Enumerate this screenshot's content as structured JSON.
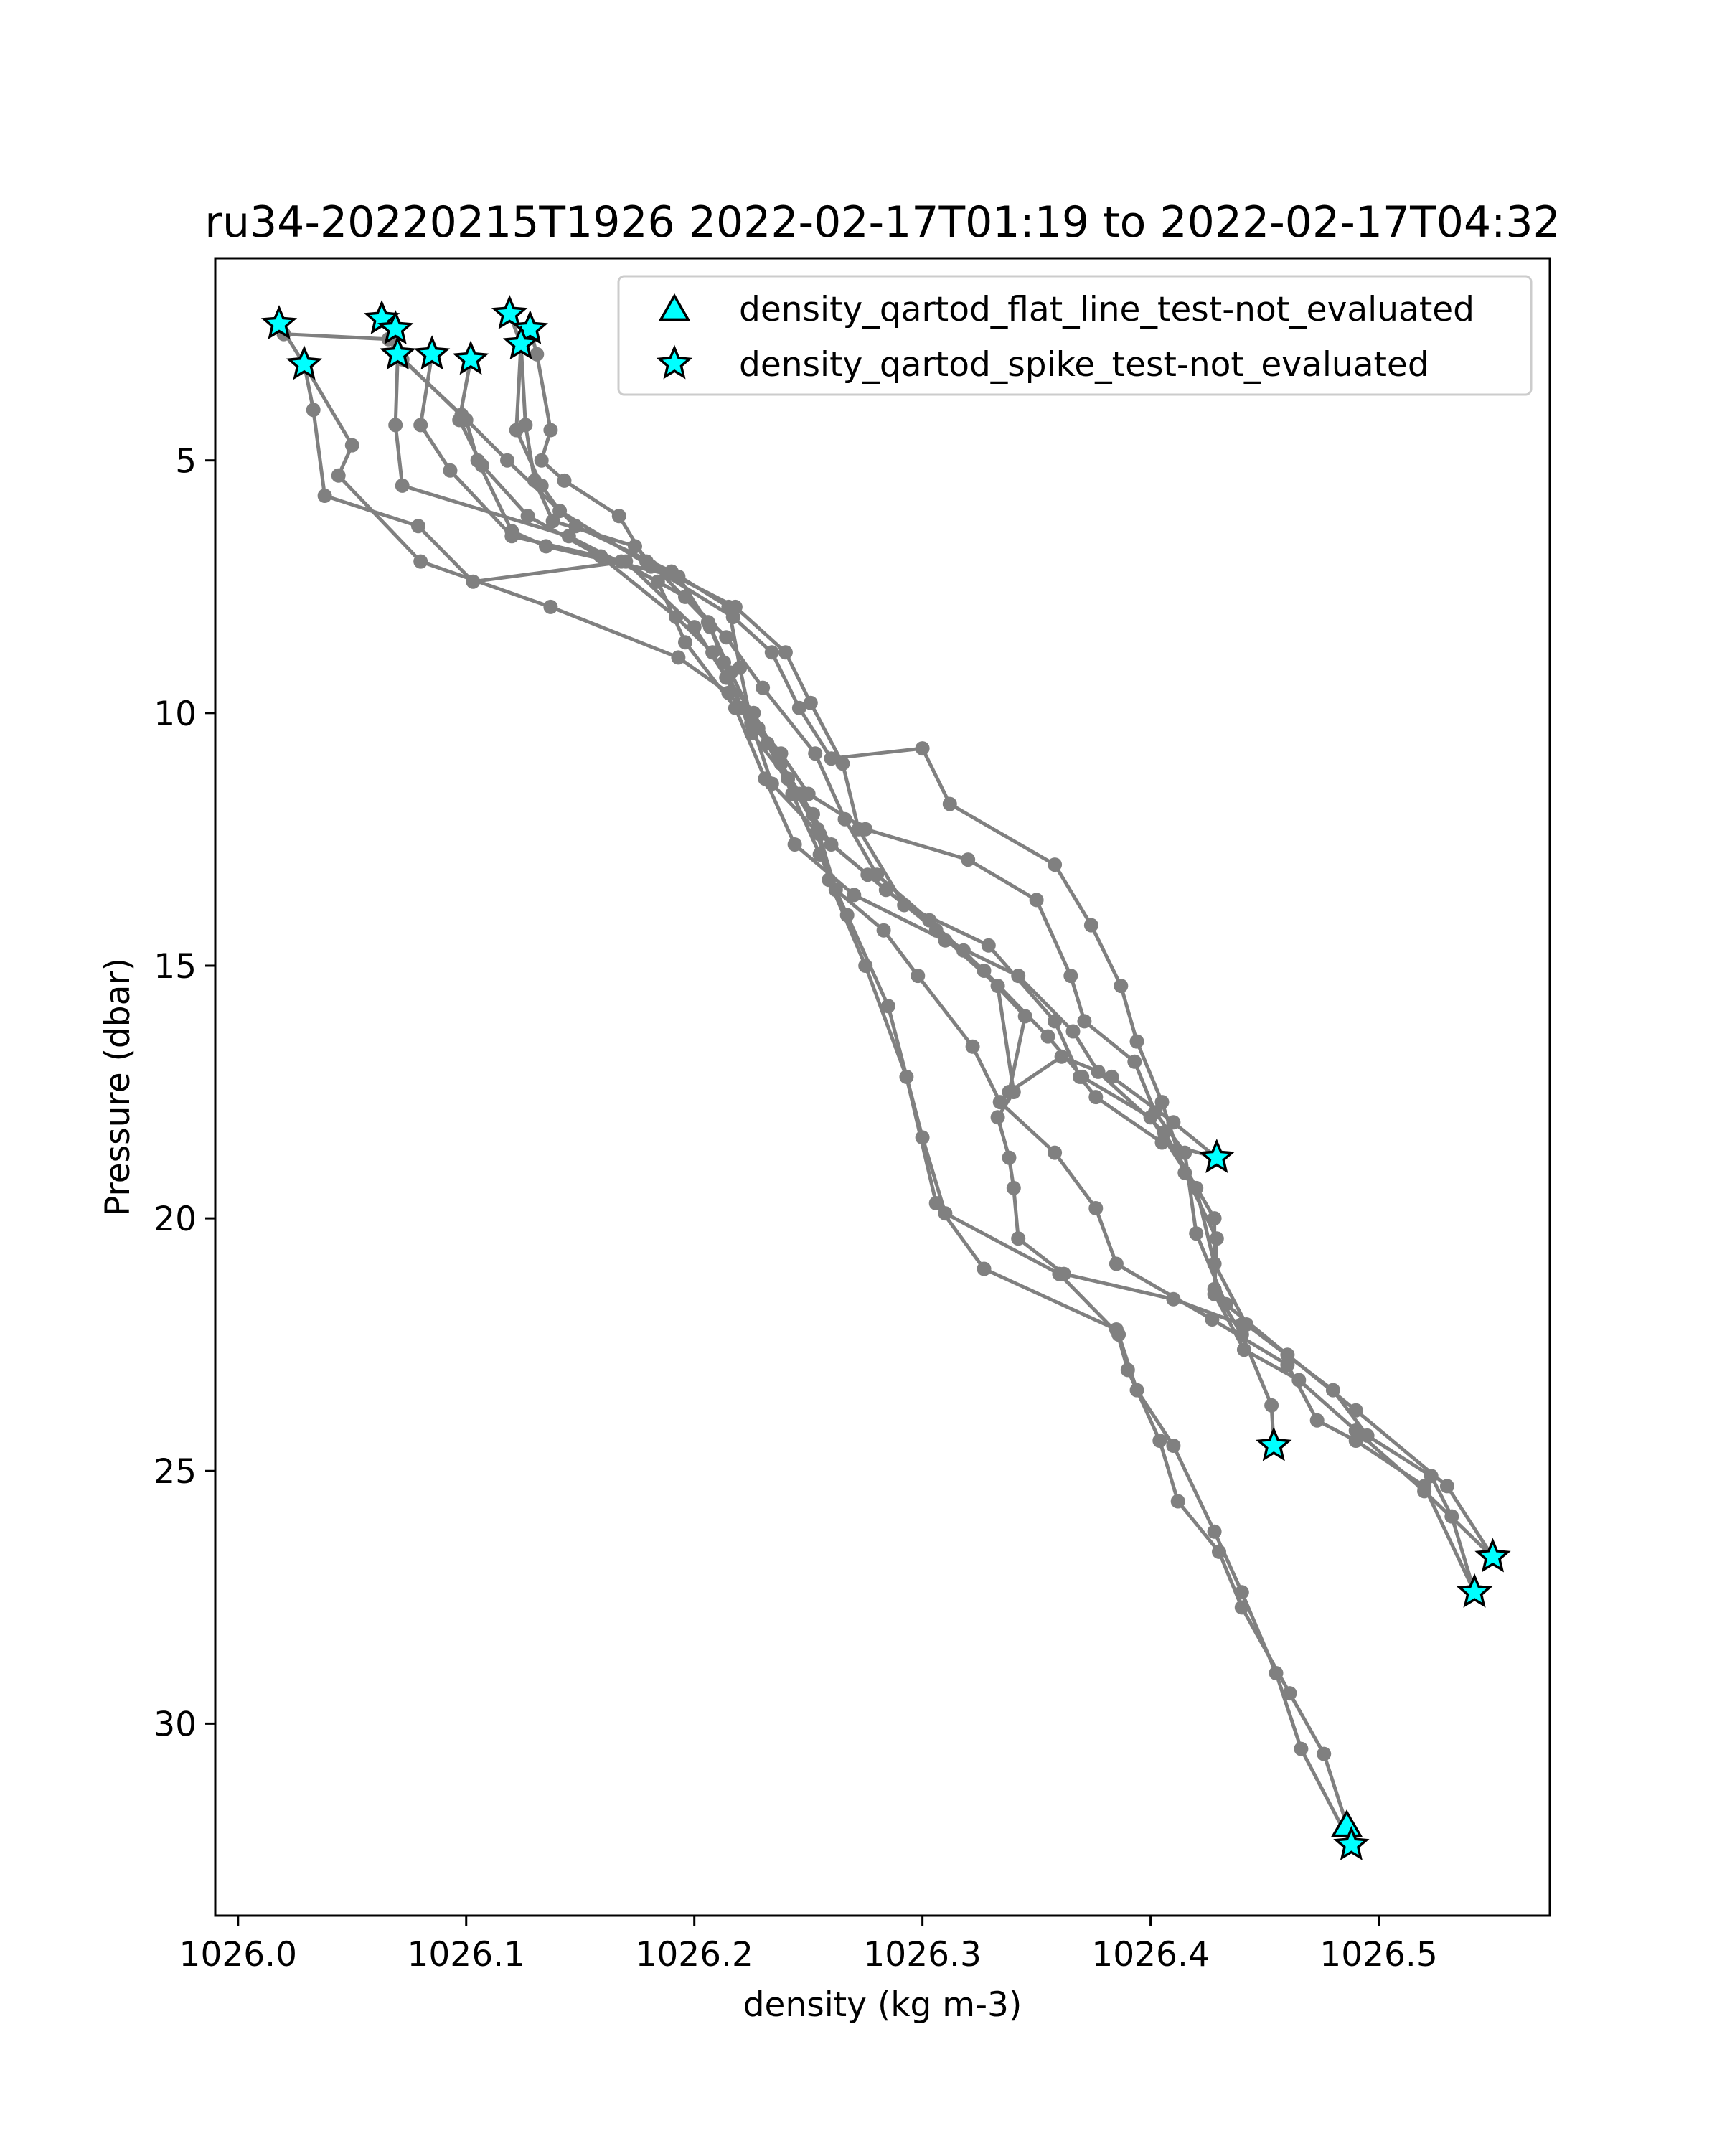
{
  "chart_data": {
    "type": "scatter",
    "title": "ru34-20220215T1926 2022-02-17T01:19 to 2022-02-17T04:32",
    "xlabel": "density (kg m-3)",
    "ylabel": "Pressure (dbar)",
    "xlim": [
      1025.99,
      1026.575
    ],
    "ylim": [
      33.8,
      1.0
    ],
    "y_inverted": true,
    "xticks": [
      1026.0,
      1026.1,
      1026.2,
      1026.3,
      1026.4,
      1026.5
    ],
    "xtick_labels": [
      "1026.0",
      "1026.1",
      "1026.2",
      "1026.3",
      "1026.4",
      "1026.5"
    ],
    "yticks": [
      5,
      10,
      15,
      20,
      25,
      30
    ],
    "ytick_labels": [
      "5",
      "10",
      "15",
      "20",
      "25",
      "30"
    ],
    "grid": false,
    "legend_position": "top-right",
    "colors": {
      "profile_line": "#808080",
      "marker_fill": "#00ffff",
      "marker_edge": "#000000"
    },
    "series": [
      {
        "name": "density_qartod_flat_line_test-not_evaluated",
        "marker": "triangle",
        "points": [
          [
            1026.486,
            32.0
          ]
        ]
      },
      {
        "name": "density_qartod_spike_test-not_evaluated",
        "marker": "star",
        "points": [
          [
            1026.018,
            2.3
          ],
          [
            1026.029,
            3.1
          ],
          [
            1026.063,
            2.2
          ],
          [
            1026.069,
            2.4
          ],
          [
            1026.07,
            2.9
          ],
          [
            1026.085,
            2.9
          ],
          [
            1026.102,
            3.0
          ],
          [
            1026.119,
            2.1
          ],
          [
            1026.128,
            2.4
          ],
          [
            1026.124,
            2.7
          ],
          [
            1026.429,
            18.8
          ],
          [
            1026.454,
            24.5
          ],
          [
            1026.55,
            26.7
          ],
          [
            1026.542,
            27.4
          ],
          [
            1026.488,
            32.4
          ]
        ]
      }
    ],
    "profiles": [
      [
        [
          1026.018,
          2.3
        ],
        [
          1026.029,
          3.1
        ],
        [
          1026.033,
          4.0
        ],
        [
          1026.038,
          5.7
        ],
        [
          1026.079,
          6.3
        ],
        [
          1026.103,
          7.4
        ],
        [
          1026.17,
          7.0
        ],
        [
          1026.2,
          8.3
        ],
        [
          1026.214,
          9.3
        ],
        [
          1026.226,
          10.0
        ],
        [
          1026.238,
          11.0
        ],
        [
          1026.252,
          12.0
        ],
        [
          1026.259,
          13.3
        ],
        [
          1026.275,
          15.0
        ],
        [
          1026.293,
          17.2
        ],
        [
          1026.306,
          19.7
        ],
        [
          1026.327,
          21.0
        ],
        [
          1026.385,
          22.2
        ],
        [
          1026.39,
          23.0
        ],
        [
          1026.404,
          24.4
        ],
        [
          1026.412,
          25.6
        ],
        [
          1026.43,
          26.6
        ],
        [
          1026.44,
          27.7
        ],
        [
          1026.461,
          29.4
        ],
        [
          1026.476,
          30.6
        ],
        [
          1026.486,
          32.0
        ]
      ],
      [
        [
          1026.029,
          3.1
        ],
        [
          1026.05,
          4.7
        ],
        [
          1026.044,
          5.3
        ],
        [
          1026.08,
          7.0
        ],
        [
          1026.137,
          7.9
        ],
        [
          1026.193,
          8.9
        ],
        [
          1026.215,
          9.6
        ],
        [
          1026.232,
          10.6
        ],
        [
          1026.243,
          11.6
        ],
        [
          1026.255,
          12.8
        ],
        [
          1026.267,
          14.0
        ],
        [
          1026.285,
          15.8
        ],
        [
          1026.3,
          18.4
        ],
        [
          1026.31,
          19.9
        ],
        [
          1026.36,
          21.1
        ],
        [
          1026.386,
          22.3
        ],
        [
          1026.394,
          23.4
        ],
        [
          1026.41,
          24.5
        ],
        [
          1026.428,
          26.2
        ],
        [
          1026.44,
          27.4
        ],
        [
          1026.455,
          29.0
        ],
        [
          1026.466,
          30.5
        ],
        [
          1026.488,
          32.4
        ]
      ],
      [
        [
          1026.063,
          2.2
        ],
        [
          1026.069,
          2.4
        ],
        [
          1026.07,
          2.9
        ],
        [
          1026.069,
          4.3
        ],
        [
          1026.072,
          5.5
        ],
        [
          1026.145,
          6.5
        ],
        [
          1026.184,
          7.4
        ],
        [
          1026.196,
          8.6
        ],
        [
          1026.218,
          9.9
        ],
        [
          1026.231,
          11.3
        ],
        [
          1026.244,
          12.6
        ],
        [
          1026.27,
          13.6
        ],
        [
          1026.31,
          14.5
        ],
        [
          1026.342,
          15.2
        ],
        [
          1026.366,
          16.3
        ],
        [
          1026.377,
          17.1
        ],
        [
          1026.406,
          18.3
        ],
        [
          1026.428,
          20.0
        ],
        [
          1026.428,
          21.4
        ],
        [
          1026.44,
          22.3
        ],
        [
          1026.453,
          23.7
        ],
        [
          1026.454,
          24.5
        ]
      ],
      [
        [
          1026.085,
          2.9
        ],
        [
          1026.08,
          4.3
        ],
        [
          1026.093,
          5.2
        ],
        [
          1026.12,
          6.5
        ],
        [
          1026.168,
          7.0
        ],
        [
          1026.196,
          7.7
        ],
        [
          1026.214,
          8.5
        ],
        [
          1026.23,
          9.5
        ],
        [
          1026.253,
          10.8
        ],
        [
          1026.266,
          12.1
        ],
        [
          1026.28,
          13.2
        ],
        [
          1026.303,
          14.1
        ],
        [
          1026.327,
          15.1
        ],
        [
          1026.355,
          16.4
        ],
        [
          1026.37,
          17.2
        ],
        [
          1026.4,
          18.0
        ],
        [
          1026.42,
          19.4
        ],
        [
          1026.428,
          20.9
        ],
        [
          1026.442,
          22.1
        ],
        [
          1026.48,
          23.4
        ],
        [
          1026.495,
          24.3
        ],
        [
          1026.523,
          25.1
        ],
        [
          1026.532,
          25.9
        ],
        [
          1026.542,
          27.4
        ]
      ],
      [
        [
          1026.102,
          3.0
        ],
        [
          1026.097,
          4.2
        ],
        [
          1026.107,
          5.1
        ],
        [
          1026.127,
          6.1
        ],
        [
          1026.159,
          6.9
        ],
        [
          1026.192,
          8.1
        ],
        [
          1026.208,
          8.8
        ],
        [
          1026.221,
          9.9
        ],
        [
          1026.238,
          10.8
        ],
        [
          1026.25,
          11.6
        ],
        [
          1026.275,
          12.3
        ],
        [
          1026.32,
          12.9
        ],
        [
          1026.35,
          13.7
        ],
        [
          1026.365,
          15.2
        ],
        [
          1026.371,
          16.1
        ],
        [
          1026.393,
          16.9
        ],
        [
          1026.402,
          17.9
        ],
        [
          1026.415,
          18.7
        ],
        [
          1026.42,
          20.3
        ],
        [
          1026.433,
          21.7
        ],
        [
          1026.46,
          22.7
        ],
        [
          1026.49,
          23.8
        ],
        [
          1026.53,
          25.3
        ],
        [
          1026.55,
          26.7
        ]
      ],
      [
        [
          1026.119,
          2.1
        ],
        [
          1026.124,
          2.7
        ],
        [
          1026.122,
          4.4
        ],
        [
          1026.133,
          5.5
        ],
        [
          1026.141,
          6.0
        ],
        [
          1026.181,
          7.1
        ],
        [
          1026.217,
          8.1
        ],
        [
          1026.234,
          8.8
        ],
        [
          1026.246,
          9.9
        ],
        [
          1026.26,
          10.9
        ],
        [
          1026.3,
          10.7
        ],
        [
          1026.312,
          11.8
        ],
        [
          1026.358,
          13.0
        ],
        [
          1026.374,
          14.2
        ],
        [
          1026.387,
          15.4
        ],
        [
          1026.394,
          16.5
        ],
        [
          1026.405,
          17.7
        ],
        [
          1026.415,
          19.1
        ],
        [
          1026.429,
          20.4
        ],
        [
          1026.428,
          21.5
        ],
        [
          1026.441,
          22.6
        ],
        [
          1026.465,
          23.2
        ],
        [
          1026.49,
          24.2
        ],
        [
          1026.52,
          25.4
        ],
        [
          1026.55,
          26.7
        ]
      ],
      [
        [
          1026.128,
          2.4
        ],
        [
          1026.131,
          2.9
        ],
        [
          1026.137,
          4.4
        ],
        [
          1026.133,
          5.0
        ],
        [
          1026.143,
          5.4
        ],
        [
          1026.167,
          6.1
        ],
        [
          1026.179,
          7.0
        ],
        [
          1026.218,
          7.9
        ],
        [
          1026.24,
          8.8
        ],
        [
          1026.251,
          9.8
        ],
        [
          1026.265,
          11.0
        ],
        [
          1026.272,
          12.3
        ],
        [
          1026.292,
          13.8
        ],
        [
          1026.329,
          14.6
        ],
        [
          1026.358,
          16.1
        ],
        [
          1026.369,
          17.2
        ],
        [
          1026.376,
          17.6
        ],
        [
          1026.405,
          18.5
        ],
        [
          1026.429,
          18.8
        ]
      ],
      [
        [
          1026.124,
          2.7
        ],
        [
          1026.126,
          4.3
        ],
        [
          1026.13,
          5.4
        ],
        [
          1026.138,
          6.2
        ],
        [
          1026.174,
          6.7
        ],
        [
          1026.206,
          8.2
        ],
        [
          1026.216,
          9.2
        ],
        [
          1026.228,
          10.3
        ],
        [
          1026.241,
          11.3
        ],
        [
          1026.254,
          12.3
        ],
        [
          1026.262,
          13.5
        ],
        [
          1026.283,
          14.3
        ],
        [
          1026.298,
          15.2
        ],
        [
          1026.322,
          16.6
        ],
        [
          1026.334,
          17.7
        ],
        [
          1026.358,
          18.7
        ],
        [
          1026.376,
          19.8
        ],
        [
          1026.385,
          20.9
        ],
        [
          1026.427,
          22.0
        ],
        [
          1026.46,
          22.9
        ],
        [
          1026.473,
          24.0
        ],
        [
          1026.49,
          24.4
        ],
        [
          1026.52,
          25.3
        ],
        [
          1026.542,
          27.4
        ]
      ],
      [
        [
          1026.07,
          2.9
        ],
        [
          1026.1,
          4.2
        ],
        [
          1026.105,
          5.0
        ],
        [
          1026.12,
          6.4
        ],
        [
          1026.135,
          6.7
        ],
        [
          1026.193,
          7.3
        ],
        [
          1026.207,
          8.3
        ],
        [
          1026.213,
          9.0
        ],
        [
          1026.225,
          10.4
        ],
        [
          1026.246,
          11.6
        ],
        [
          1026.26,
          12.6
        ],
        [
          1026.284,
          13.5
        ],
        [
          1026.318,
          14.7
        ],
        [
          1026.345,
          16.0
        ],
        [
          1026.338,
          17.5
        ],
        [
          1026.361,
          16.8
        ],
        [
          1026.383,
          17.2
        ],
        [
          1026.41,
          18.1
        ],
        [
          1026.429,
          18.8
        ]
      ],
      [
        [
          1026.02,
          2.5
        ],
        [
          1026.066,
          2.6
        ],
        [
          1026.072,
          3.0
        ],
        [
          1026.098,
          4.1
        ],
        [
          1026.118,
          5.0
        ],
        [
          1026.148,
          6.3
        ],
        [
          1026.19,
          7.2
        ],
        [
          1026.215,
          7.9
        ],
        [
          1026.22,
          9.1
        ],
        [
          1026.225,
          10.2
        ],
        [
          1026.234,
          11.4
        ],
        [
          1026.255,
          12.4
        ],
        [
          1026.276,
          13.2
        ],
        [
          1026.306,
          14.3
        ],
        [
          1026.333,
          15.4
        ],
        [
          1026.34,
          17.5
        ],
        [
          1026.333,
          18.0
        ],
        [
          1026.338,
          18.8
        ],
        [
          1026.34,
          19.4
        ],
        [
          1026.342,
          20.4
        ],
        [
          1026.362,
          21.1
        ],
        [
          1026.41,
          21.6
        ],
        [
          1026.44,
          22.1
        ]
      ]
    ]
  }
}
